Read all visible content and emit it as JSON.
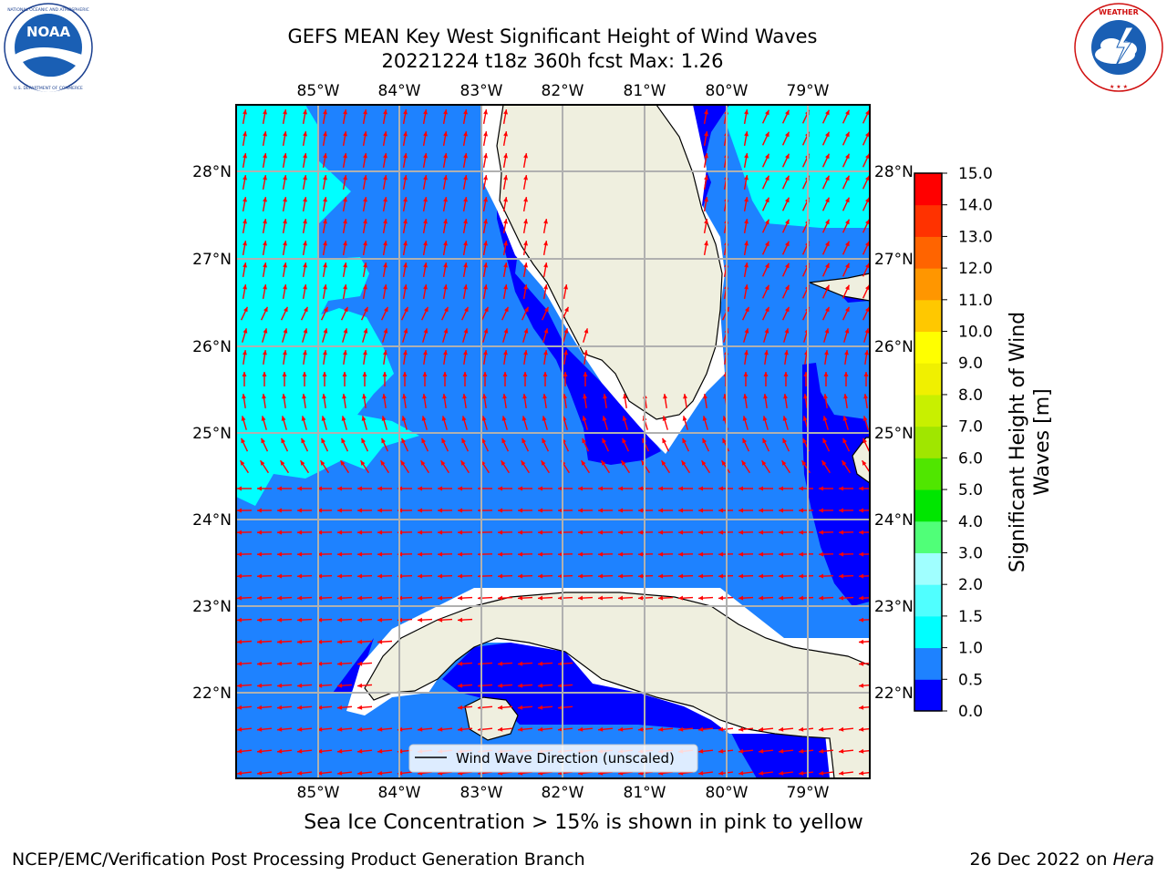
{
  "header": {
    "title_line1": "GEFS MEAN Key West Significant Height of Wind Waves",
    "title_line2": "20221224 t18z 360h fcst   Max: 1.26"
  },
  "logos": {
    "left": {
      "name": "noaa-logo",
      "text": "NOAA",
      "ring_text": "NATIONAL OCEANIC AND ATMOSPHERIC ADMINISTRATION · U.S. DEPARTMENT OF COMMERCE",
      "color": "#1a5fb4"
    },
    "right": {
      "name": "nws-logo",
      "ring_text": "NATIONAL WEATHER SERVICE",
      "color": "#d01010"
    }
  },
  "map": {
    "lon_ticks": [
      "85°W",
      "84°W",
      "83°W",
      "82°W",
      "81°W",
      "80°W",
      "79°W"
    ],
    "lat_ticks": [
      "28°N",
      "27°N",
      "26°N",
      "25°N",
      "24°N",
      "23°N",
      "22°N"
    ],
    "legend_label": "Wind Wave Direction (unscaled)",
    "arrow_color": "#ff0000",
    "land_color": "#efefdf",
    "grid_color": "#b0b0b0"
  },
  "colorbar": {
    "label": "Significant Height of Wind Waves [m]",
    "label_line1": "Significant Height of Wind",
    "label_line2": "Waves [m]",
    "ticks": [
      "0.0",
      "0.5",
      "1.0",
      "1.5",
      "2.0",
      "3.0",
      "4.0",
      "5.0",
      "6.0",
      "7.0",
      "8.0",
      "9.0",
      "10.0",
      "11.0",
      "12.0",
      "13.0",
      "14.0",
      "15.0"
    ],
    "colors": [
      "#0000ff",
      "#1e82ff",
      "#00ffff",
      "#50ffff",
      "#a0ffff",
      "#50ff78",
      "#00e600",
      "#50e600",
      "#a0e600",
      "#c8f000",
      "#f0f000",
      "#ffff00",
      "#ffc800",
      "#ff9600",
      "#ff6400",
      "#ff3200",
      "#ff0000"
    ]
  },
  "footer": {
    "subtitle": "Sea Ice Concentration > 15% is shown in pink to yellow",
    "credit": "NCEP/EMC/Verification Post Processing Product Generation Branch",
    "date": "26 Dec 2022 on ",
    "host": "Hera"
  }
}
